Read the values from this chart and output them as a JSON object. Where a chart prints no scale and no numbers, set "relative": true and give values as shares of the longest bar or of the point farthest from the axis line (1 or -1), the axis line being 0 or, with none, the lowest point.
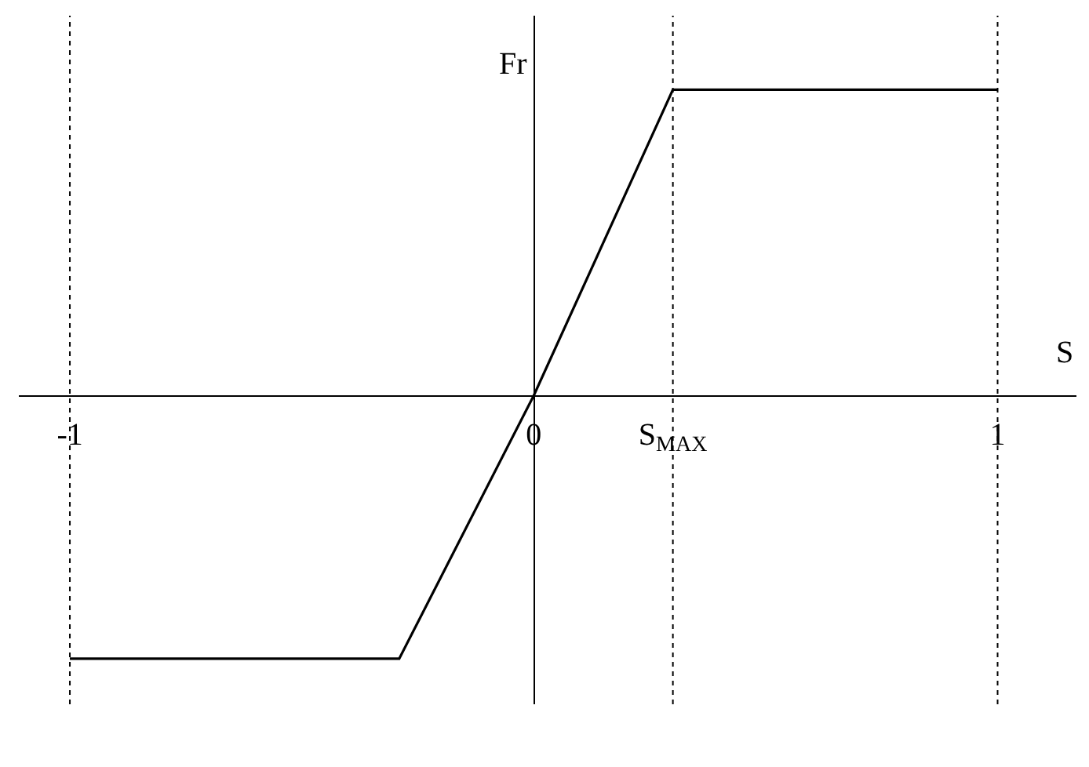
{
  "chart_data": {
    "type": "line",
    "relative": true,
    "xlabel": "S",
    "ylabel": "Fr",
    "x": [
      -1,
      -0.29,
      0,
      0.3,
      1
    ],
    "series": [
      {
        "color": "#000000",
        "values": [
          -0.86,
          -0.86,
          0,
          1,
          1
        ]
      }
    ],
    "xlim": [
      -1.11,
      1.17
    ],
    "xticks": [
      -1,
      0,
      {
        "value": 0.3,
        "label": "S$_{MAX}$"
      },
      1
    ],
    "ref_lines": [
      {
        "axis": "x",
        "value": -1,
        "color": "#000000",
        "line_style": "dotted"
      },
      {
        "axis": "x",
        "value": 0.3,
        "color": "#000000",
        "line_style": "dotted"
      },
      {
        "axis": "x",
        "value": 1,
        "color": "#000000",
        "line_style": "dotted"
      }
    ],
    "grid": false,
    "marker": "none",
    "line_style": "solid"
  }
}
